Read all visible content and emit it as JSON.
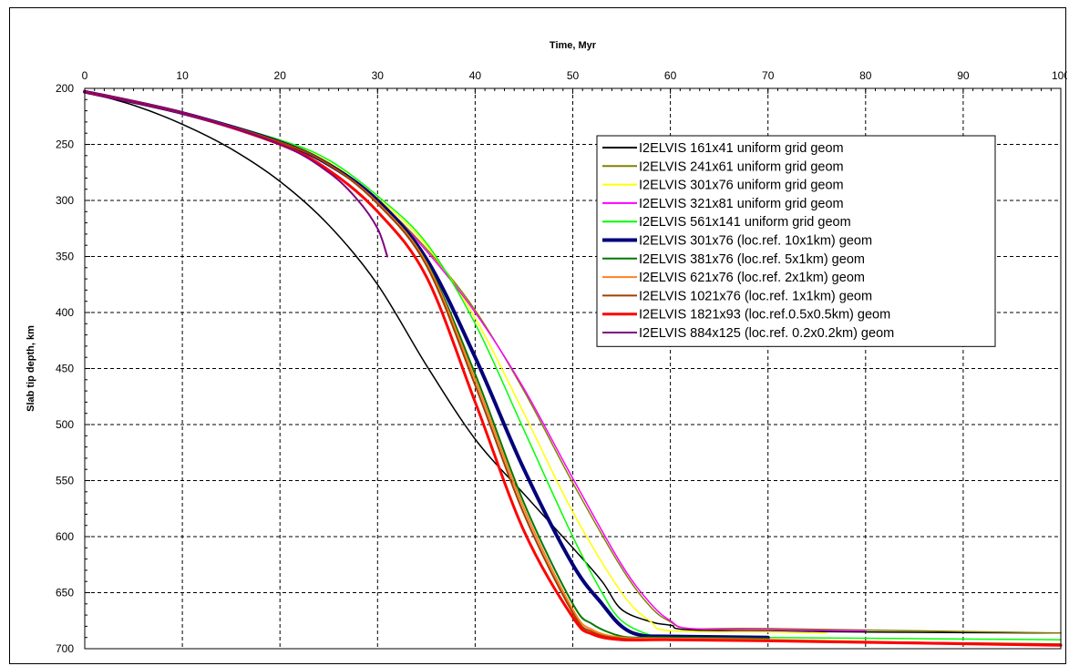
{
  "chart_data": {
    "type": "line",
    "xlabel": "Time, Myr",
    "ylabel": "Slab tip depth, km",
    "xlim": [
      0,
      100
    ],
    "ylim": [
      200,
      700
    ],
    "y_inverted": true,
    "x_axis_position": "top",
    "grid": true,
    "legend_position": "top-right",
    "x_ticks": [
      0,
      10,
      20,
      30,
      40,
      50,
      60,
      70,
      80,
      90,
      100
    ],
    "y_ticks": [
      200,
      250,
      300,
      350,
      400,
      450,
      500,
      550,
      600,
      650,
      700
    ],
    "series": [
      {
        "name": "I2ELVIS 161x41 uniform grid geom",
        "color": "#000000",
        "width": 1.5,
        "x": [
          0,
          5,
          10,
          15,
          20,
          25,
          30,
          35,
          40,
          45,
          50,
          53,
          55,
          58,
          60,
          65,
          100
        ],
        "y": [
          203,
          215,
          232,
          254,
          283,
          322,
          375,
          447,
          513,
          562,
          610,
          640,
          665,
          676,
          679,
          684,
          686
        ]
      },
      {
        "name": "I2ELVIS 241x61 uniform grid geom",
        "color": "#808000",
        "width": 1.5,
        "x": [
          0,
          10,
          20,
          25,
          30,
          35,
          40,
          45,
          50,
          55,
          58,
          60,
          62,
          70,
          100
        ],
        "y": [
          203,
          222,
          248,
          268,
          300,
          343,
          398,
          470,
          552,
          628,
          663,
          676,
          682,
          682,
          686
        ]
      },
      {
        "name": "I2ELVIS 301x76 uniform grid geom",
        "color": "#ffff00",
        "width": 1.5,
        "x": [
          0,
          10,
          20,
          25,
          30,
          35,
          40,
          45,
          50,
          55,
          58,
          60,
          70,
          76
        ],
        "y": [
          203,
          222,
          247,
          266,
          298,
          340,
          405,
          490,
          578,
          650,
          676,
          684,
          685,
          686
        ]
      },
      {
        "name": "I2ELVIS 321x81 uniform grid geom",
        "color": "#ff00ff",
        "width": 1.5,
        "x": [
          0,
          10,
          20,
          25,
          30,
          35,
          40,
          45,
          50,
          55,
          58,
          60,
          62,
          70,
          80
        ],
        "y": [
          203,
          222,
          248,
          268,
          300,
          345,
          400,
          468,
          548,
          625,
          660,
          675,
          682,
          683,
          684
        ]
      },
      {
        "name": "I2ELVIS 561x141 uniform grid geom",
        "color": "#00ff00",
        "width": 1.5,
        "x": [
          0,
          10,
          20,
          25,
          30,
          35,
          40,
          45,
          50,
          53,
          55,
          58,
          60,
          70,
          100
        ],
        "y": [
          203,
          222,
          246,
          264,
          296,
          338,
          410,
          505,
          600,
          650,
          675,
          688,
          689,
          690,
          692
        ]
      },
      {
        "name": "I2ELVIS 301x76 (loc.ref. 10x1km) geom",
        "color": "#00007a",
        "width": 4,
        "x": [
          0,
          10,
          20,
          25,
          30,
          35,
          40,
          45,
          50,
          53,
          55,
          57,
          60,
          70
        ],
        "y": [
          203,
          222,
          248,
          268,
          300,
          352,
          440,
          540,
          625,
          660,
          680,
          688,
          689,
          690
        ]
      },
      {
        "name": "I2ELVIS 381x76 (loc.ref. 5x1km) geom",
        "color": "#007800",
        "width": 2,
        "x": [
          0,
          10,
          20,
          25,
          30,
          35,
          40,
          45,
          50,
          52,
          55,
          58,
          60,
          70
        ],
        "y": [
          203,
          222,
          248,
          268,
          302,
          355,
          455,
          570,
          660,
          678,
          689,
          690,
          690,
          691
        ]
      },
      {
        "name": "I2ELVIS 621x76 (loc.ref. 2x1km) geom",
        "color": "#ff8020",
        "width": 2,
        "x": [
          0,
          10,
          20,
          25,
          30,
          35,
          40,
          45,
          50,
          52,
          55,
          60,
          70,
          100
        ],
        "y": [
          203,
          222,
          248,
          268,
          302,
          356,
          460,
          575,
          665,
          683,
          690,
          691,
          692,
          697
        ]
      },
      {
        "name": "I2ELVIS 1021x76 (loc.ref. 1x1km) geom",
        "color": "#a04000",
        "width": 2,
        "x": [
          0,
          10,
          20,
          25,
          30,
          35,
          40,
          45,
          50,
          52,
          55,
          60,
          70,
          100
        ],
        "y": [
          203,
          222,
          248,
          268,
          303,
          358,
          465,
          580,
          668,
          685,
          691,
          692,
          693,
          696
        ]
      },
      {
        "name": "I2ELVIS 1821x93 (loc.ref.0.5x0.5km) geom",
        "color": "#ff0000",
        "width": 3,
        "x": [
          0,
          10,
          20,
          25,
          30,
          35,
          40,
          45,
          50,
          52,
          55,
          60,
          70,
          100
        ],
        "y": [
          203,
          222,
          250,
          273,
          310,
          368,
          480,
          595,
          672,
          687,
          692,
          692,
          693,
          697
        ]
      },
      {
        "name": "I2ELVIS 884x125 (loc.ref. 0.2x0.2km) geom",
        "color": "#800080",
        "width": 2,
        "x": [
          0,
          10,
          20,
          25,
          28,
          30,
          31
        ],
        "y": [
          203,
          222,
          250,
          275,
          300,
          325,
          350
        ]
      }
    ]
  }
}
